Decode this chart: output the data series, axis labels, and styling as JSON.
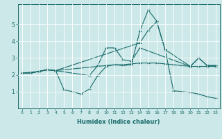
{
  "xlabel": "Humidex (Indice chaleur)",
  "bg_color": "#cce8e8",
  "line_color": "#1a6b6b",
  "grid_color": "#ffffff",
  "xlim": [
    -0.5,
    23.5
  ],
  "ylim": [
    0,
    6.2
  ],
  "yticks": [
    1,
    2,
    3,
    4,
    5
  ],
  "xticks": [
    0,
    1,
    2,
    3,
    4,
    5,
    6,
    7,
    8,
    9,
    10,
    11,
    12,
    13,
    14,
    15,
    16,
    17,
    18,
    19,
    20,
    21,
    22,
    23
  ],
  "series": [
    {
      "x": [
        0,
        1,
        2,
        3,
        4,
        5,
        6,
        7,
        8,
        9,
        10,
        11,
        12,
        13,
        14,
        15,
        16,
        17,
        18,
        19,
        20,
        21,
        22,
        23
      ],
      "y": [
        2.1,
        2.1,
        2.2,
        2.3,
        2.25,
        1.1,
        1.0,
        0.85,
        1.15,
        1.95,
        2.5,
        2.6,
        2.55,
        2.6,
        4.6,
        5.85,
        5.2,
        3.5,
        1.05,
        1.0,
        0.95,
        0.85,
        0.7,
        0.6
      ]
    },
    {
      "x": [
        0,
        1,
        2,
        3,
        4,
        10,
        11,
        12,
        13,
        14,
        15,
        16,
        17,
        18,
        19,
        20,
        21,
        22,
        23
      ],
      "y": [
        2.1,
        2.1,
        2.2,
        2.3,
        2.25,
        2.55,
        2.6,
        2.6,
        2.65,
        2.7,
        2.7,
        2.7,
        2.65,
        2.6,
        2.55,
        2.5,
        2.5,
        2.5,
        2.5
      ]
    },
    {
      "x": [
        0,
        1,
        2,
        3,
        4,
        14,
        15,
        16,
        17,
        20,
        21,
        22,
        23
      ],
      "y": [
        2.1,
        2.1,
        2.2,
        2.3,
        2.25,
        3.9,
        4.65,
        5.15,
        3.5,
        2.5,
        3.0,
        2.55,
        2.55
      ]
    },
    {
      "x": [
        0,
        1,
        2,
        3,
        4,
        8,
        9,
        10,
        11,
        12,
        13,
        14,
        20,
        21,
        22,
        23
      ],
      "y": [
        2.1,
        2.15,
        2.2,
        2.3,
        2.25,
        1.95,
        2.55,
        3.6,
        3.6,
        2.9,
        2.8,
        3.6,
        2.5,
        3.0,
        2.55,
        2.55
      ]
    }
  ]
}
